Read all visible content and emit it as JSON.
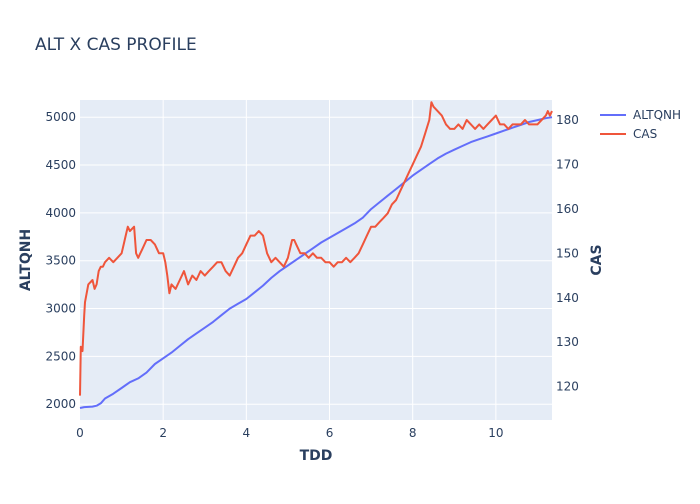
{
  "chart_data": {
    "type": "line",
    "title": "ALT X CAS PROFILE",
    "xlabel": "TDD",
    "ylabel": "ALTQNH",
    "y2label": "CAS",
    "xlim": [
      0,
      11.35
    ],
    "ylim": [
      1835,
      5180
    ],
    "y2lim": [
      112.5,
      184.5
    ],
    "x_ticks": [
      0,
      2,
      4,
      6,
      8,
      10
    ],
    "y_ticks": [
      2000,
      2500,
      3000,
      3500,
      4000,
      4500,
      5000
    ],
    "y2_ticks": [
      120,
      130,
      140,
      150,
      160,
      170,
      180
    ],
    "grid": true,
    "legend_position": "right",
    "colors": {
      "plot_bg": "#e5ecf6",
      "grid": "#ffffff",
      "text": "#2a3f5f"
    },
    "series": [
      {
        "name": "ALTQNH",
        "axis": "y",
        "color": "#636efa",
        "x": [
          0,
          0.1,
          0.3,
          0.4,
          0.5,
          0.6,
          0.8,
          1.0,
          1.2,
          1.4,
          1.6,
          1.8,
          2.0,
          2.2,
          2.4,
          2.6,
          2.8,
          3.0,
          3.2,
          3.4,
          3.6,
          3.8,
          4.0,
          4.2,
          4.4,
          4.6,
          4.8,
          5.0,
          5.2,
          5.4,
          5.6,
          5.8,
          6.0,
          6.2,
          6.4,
          6.6,
          6.8,
          7.0,
          7.2,
          7.4,
          7.6,
          7.8,
          8.0,
          8.2,
          8.4,
          8.6,
          8.8,
          9.0,
          9.2,
          9.4,
          9.6,
          9.8,
          10.0,
          10.2,
          10.4,
          10.6,
          10.8,
          11.0,
          11.2,
          11.35
        ],
        "y": [
          1960,
          1970,
          1975,
          1985,
          2010,
          2060,
          2110,
          2170,
          2230,
          2270,
          2330,
          2420,
          2480,
          2540,
          2610,
          2680,
          2740,
          2800,
          2860,
          2930,
          3000,
          3050,
          3100,
          3170,
          3240,
          3320,
          3390,
          3450,
          3510,
          3570,
          3630,
          3690,
          3740,
          3790,
          3840,
          3890,
          3950,
          4040,
          4110,
          4180,
          4250,
          4320,
          4390,
          4450,
          4510,
          4570,
          4620,
          4660,
          4700,
          4740,
          4770,
          4800,
          4830,
          4860,
          4890,
          4920,
          4950,
          4970,
          4990,
          5000
        ]
      },
      {
        "name": "CAS",
        "axis": "y2",
        "color": "#ef553b",
        "x": [
          0,
          0.02,
          0.06,
          0.1,
          0.12,
          0.2,
          0.3,
          0.35,
          0.4,
          0.45,
          0.5,
          0.55,
          0.6,
          0.7,
          0.8,
          0.9,
          1.0,
          1.05,
          1.1,
          1.15,
          1.2,
          1.3,
          1.35,
          1.4,
          1.45,
          1.5,
          1.6,
          1.7,
          1.8,
          1.9,
          2.0,
          2.05,
          2.1,
          2.15,
          2.2,
          2.3,
          2.4,
          2.5,
          2.6,
          2.7,
          2.8,
          2.9,
          3.0,
          3.1,
          3.2,
          3.3,
          3.4,
          3.5,
          3.6,
          3.7,
          3.8,
          3.9,
          4.0,
          4.1,
          4.2,
          4.3,
          4.4,
          4.5,
          4.6,
          4.7,
          4.8,
          4.9,
          5.0,
          5.05,
          5.1,
          5.15,
          5.2,
          5.3,
          5.4,
          5.5,
          5.6,
          5.7,
          5.8,
          5.9,
          6.0,
          6.1,
          6.2,
          6.3,
          6.4,
          6.5,
          6.6,
          6.7,
          6.8,
          6.9,
          7.0,
          7.1,
          7.2,
          7.3,
          7.4,
          7.5,
          7.6,
          7.7,
          7.8,
          7.9,
          8.0,
          8.1,
          8.2,
          8.3,
          8.4,
          8.45,
          8.5,
          8.6,
          8.7,
          8.8,
          8.9,
          9.0,
          9.1,
          9.2,
          9.3,
          9.4,
          9.5,
          9.6,
          9.7,
          9.8,
          9.9,
          10.0,
          10.1,
          10.2,
          10.3,
          10.4,
          10.5,
          10.6,
          10.7,
          10.8,
          10.9,
          11.0,
          11.1,
          11.2,
          11.25,
          11.3,
          11.35
        ],
        "y": [
          118,
          129,
          128,
          136,
          139,
          143,
          144,
          142,
          143,
          146,
          147,
          147,
          148,
          149,
          148,
          149,
          150,
          152,
          154,
          156,
          155,
          156,
          150,
          149,
          150,
          151,
          153,
          153,
          152,
          150,
          150,
          148,
          145,
          141,
          143,
          142,
          144,
          146,
          143,
          145,
          144,
          146,
          145,
          146,
          147,
          148,
          148,
          146,
          145,
          147,
          149,
          150,
          152,
          154,
          154,
          155,
          154,
          150,
          148,
          149,
          148,
          147,
          149,
          151,
          153,
          153,
          152,
          150,
          150,
          149,
          150,
          149,
          149,
          148,
          148,
          147,
          148,
          148,
          149,
          148,
          149,
          150,
          152,
          154,
          156,
          156,
          157,
          158,
          159,
          161,
          162,
          164,
          166,
          168,
          170,
          172,
          174,
          177,
          180,
          184,
          183,
          182,
          181,
          179,
          178,
          178,
          179,
          178,
          180,
          179,
          178,
          179,
          178,
          179,
          180,
          181,
          179,
          179,
          178,
          179,
          179,
          179,
          180,
          179,
          179,
          179,
          180,
          181,
          182,
          181,
          182
        ]
      }
    ]
  }
}
